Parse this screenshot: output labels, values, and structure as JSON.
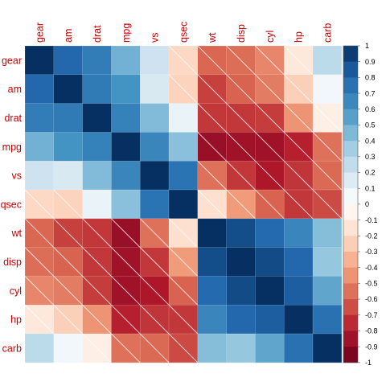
{
  "chart_data": {
    "type": "heatmap",
    "variables": [
      "gear",
      "am",
      "drat",
      "mpg",
      "vs",
      "qsec",
      "wt",
      "disp",
      "cyl",
      "hp",
      "carb"
    ],
    "matrix": [
      [
        1.0,
        0.79,
        0.7,
        0.48,
        0.21,
        -0.21,
        -0.58,
        -0.56,
        -0.49,
        -0.13,
        0.27
      ],
      [
        0.79,
        1.0,
        0.71,
        0.6,
        0.17,
        -0.23,
        -0.69,
        -0.59,
        -0.52,
        -0.24,
        0.06
      ],
      [
        0.7,
        0.71,
        1.0,
        0.68,
        0.44,
        0.09,
        -0.71,
        -0.71,
        -0.7,
        -0.45,
        -0.09
      ],
      [
        0.48,
        0.6,
        0.68,
        1.0,
        0.66,
        0.42,
        -0.87,
        -0.85,
        -0.85,
        -0.78,
        -0.55
      ],
      [
        0.21,
        0.17,
        0.44,
        0.66,
        1.0,
        0.74,
        -0.55,
        -0.71,
        -0.81,
        -0.72,
        -0.57
      ],
      [
        -0.21,
        -0.23,
        0.09,
        0.42,
        0.74,
        1.0,
        -0.17,
        -0.43,
        -0.59,
        -0.71,
        -0.66
      ],
      [
        -0.58,
        -0.69,
        -0.71,
        -0.87,
        -0.55,
        -0.17,
        1.0,
        0.89,
        0.78,
        0.66,
        0.43
      ],
      [
        -0.56,
        -0.59,
        -0.71,
        -0.85,
        -0.71,
        -0.43,
        0.89,
        1.0,
        0.9,
        0.79,
        0.39
      ],
      [
        -0.49,
        -0.52,
        -0.7,
        -0.85,
        -0.81,
        -0.59,
        0.78,
        0.9,
        1.0,
        0.83,
        0.53
      ],
      [
        -0.13,
        -0.24,
        -0.45,
        -0.78,
        -0.72,
        -0.71,
        0.66,
        0.79,
        0.83,
        1.0,
        0.75
      ],
      [
        0.27,
        0.06,
        -0.09,
        -0.55,
        -0.57,
        -0.66,
        0.43,
        0.39,
        0.53,
        0.75,
        1.0
      ]
    ],
    "colorbar": {
      "min": -1,
      "max": 1,
      "ticks": [
        "1",
        "0.9",
        "0.8",
        "0.7",
        "0.6",
        "0.5",
        "0.4",
        "0.3",
        "0.2",
        "0.1",
        "0",
        "-0.1",
        "-0.2",
        "-0.3",
        "-0.4",
        "-0.5",
        "-0.6",
        "-0.7",
        "-0.8",
        "-0.9",
        "-1"
      ]
    },
    "negative_cells_hatched": true,
    "label_color": "#cc0000",
    "colormap": [
      "#67001F",
      "#B2182B",
      "#D6604D",
      "#F4A582",
      "#FDDBC7",
      "#FFFFFF",
      "#D1E5F0",
      "#92C5DE",
      "#4393C3",
      "#2166AC",
      "#053061"
    ]
  }
}
